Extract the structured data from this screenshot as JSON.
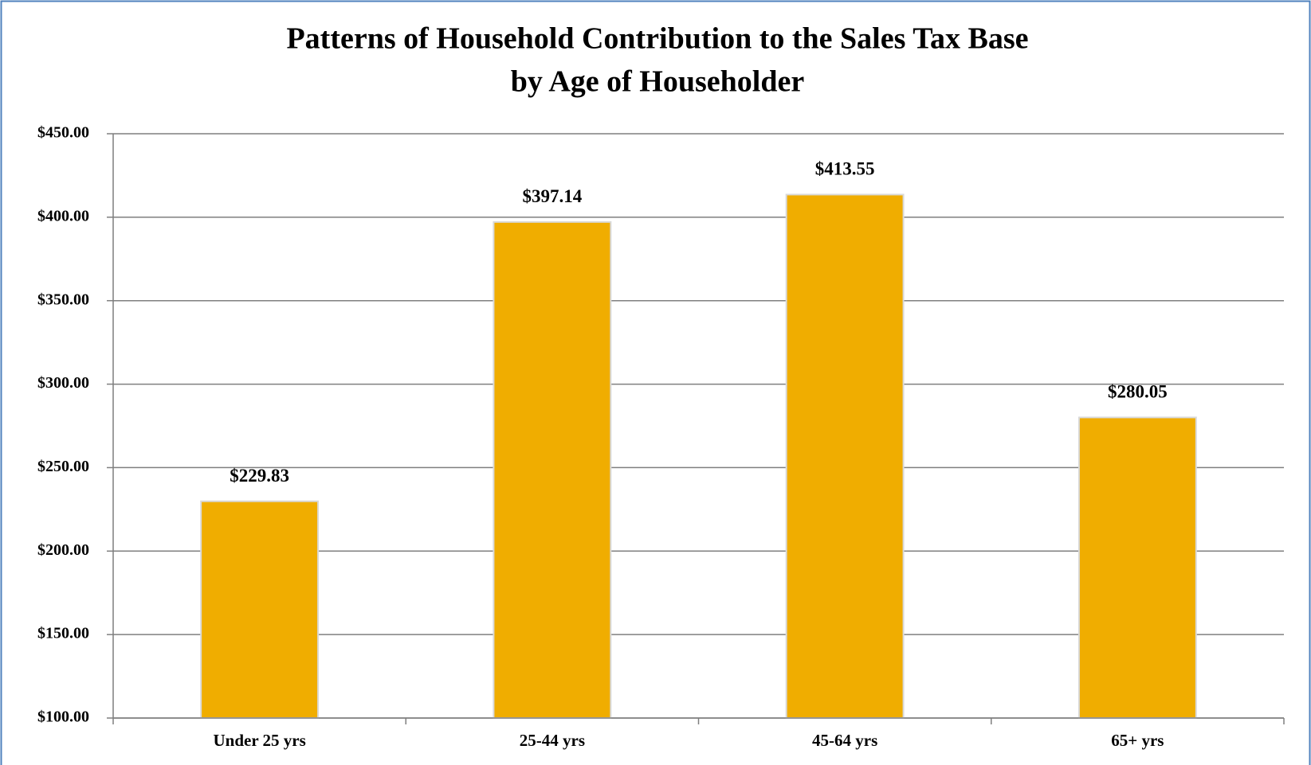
{
  "chart_data": {
    "type": "bar",
    "title": [
      "Patterns of Household Contribution to the Sales Tax Base",
      "by Age of Householder"
    ],
    "categories": [
      "Under 25 yrs",
      "25-44 yrs",
      "45-64 yrs",
      "65+ yrs"
    ],
    "values": [
      229.83,
      397.14,
      413.55,
      280.05
    ],
    "value_labels": [
      "$229.83",
      "$397.14",
      "$413.55",
      "$280.05"
    ],
    "color": "#f0ad00",
    "ylim": [
      100,
      450
    ],
    "yticks": [
      {
        "value": 100,
        "label": "$100.00"
      },
      {
        "value": 150,
        "label": "$150.00"
      },
      {
        "value": 200,
        "label": "$200.00"
      },
      {
        "value": 250,
        "label": "$250.00"
      },
      {
        "value": 300,
        "label": "$300.00"
      },
      {
        "value": 350,
        "label": "$350.00"
      },
      {
        "value": 400,
        "label": "$400.00"
      },
      {
        "value": 450,
        "label": "$450.00"
      }
    ],
    "grid": true
  }
}
